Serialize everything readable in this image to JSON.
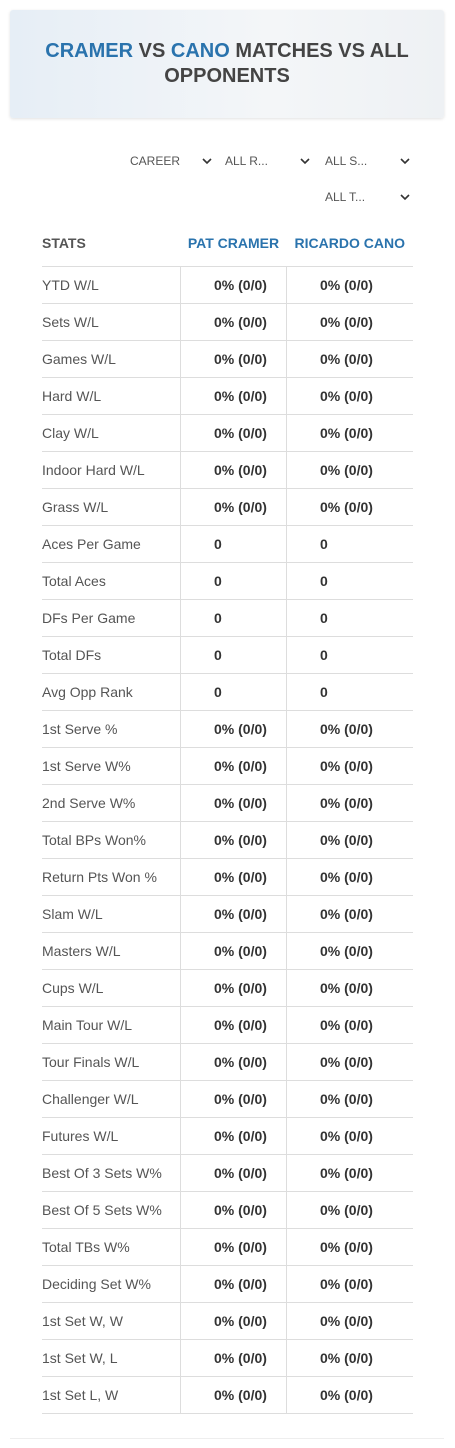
{
  "header": {
    "title_parts": [
      "CRAMER",
      "VS",
      "CANO",
      "MATCHES VS ALL OPPONENTS"
    ]
  },
  "filters": [
    "CAREER",
    "ALL R...",
    "ALL S...",
    "ALL T..."
  ],
  "table": {
    "columns": [
      "STATS",
      "PAT CRAMER",
      "RICARDO CANO"
    ],
    "rows": [
      [
        "YTD W/L",
        "0% (0/0)",
        "0% (0/0)"
      ],
      [
        "Sets W/L",
        "0% (0/0)",
        "0% (0/0)"
      ],
      [
        "Games W/L",
        "0% (0/0)",
        "0% (0/0)"
      ],
      [
        "Hard W/L",
        "0% (0/0)",
        "0% (0/0)"
      ],
      [
        "Clay W/L",
        "0% (0/0)",
        "0% (0/0)"
      ],
      [
        "Indoor Hard W/L",
        "0% (0/0)",
        "0% (0/0)"
      ],
      [
        "Grass W/L",
        "0% (0/0)",
        "0% (0/0)"
      ],
      [
        "Aces Per Game",
        "0",
        "0"
      ],
      [
        "Total Aces",
        "0",
        "0"
      ],
      [
        "DFs Per Game",
        "0",
        "0"
      ],
      [
        "Total DFs",
        "0",
        "0"
      ],
      [
        "Avg Opp Rank",
        "0",
        "0"
      ],
      [
        "1st Serve %",
        "0% (0/0)",
        "0% (0/0)"
      ],
      [
        "1st Serve W%",
        "0% (0/0)",
        "0% (0/0)"
      ],
      [
        "2nd Serve W%",
        "0% (0/0)",
        "0% (0/0)"
      ],
      [
        "Total BPs Won%",
        "0% (0/0)",
        "0% (0/0)"
      ],
      [
        "Return Pts Won %",
        "0% (0/0)",
        "0% (0/0)"
      ],
      [
        "Slam W/L",
        "0% (0/0)",
        "0% (0/0)"
      ],
      [
        "Masters W/L",
        "0% (0/0)",
        "0% (0/0)"
      ],
      [
        "Cups W/L",
        "0% (0/0)",
        "0% (0/0)"
      ],
      [
        "Main Tour W/L",
        "0% (0/0)",
        "0% (0/0)"
      ],
      [
        "Tour Finals W/L",
        "0% (0/0)",
        "0% (0/0)"
      ],
      [
        "Challenger W/L",
        "0% (0/0)",
        "0% (0/0)"
      ],
      [
        "Futures W/L",
        "0% (0/0)",
        "0% (0/0)"
      ],
      [
        "Best Of 3 Sets W%",
        "0% (0/0)",
        "0% (0/0)"
      ],
      [
        "Best Of 5 Sets W%",
        "0% (0/0)",
        "0% (0/0)"
      ],
      [
        "Total TBs W%",
        "0% (0/0)",
        "0% (0/0)"
      ],
      [
        "Deciding Set W%",
        "0% (0/0)",
        "0% (0/0)"
      ],
      [
        "1st Set W, W",
        "0% (0/0)",
        "0% (0/0)"
      ],
      [
        "1st Set W, L",
        "0% (0/0)",
        "0% (0/0)"
      ],
      [
        "1st Set L, W",
        "0% (0/0)",
        "0% (0/0)"
      ]
    ]
  }
}
